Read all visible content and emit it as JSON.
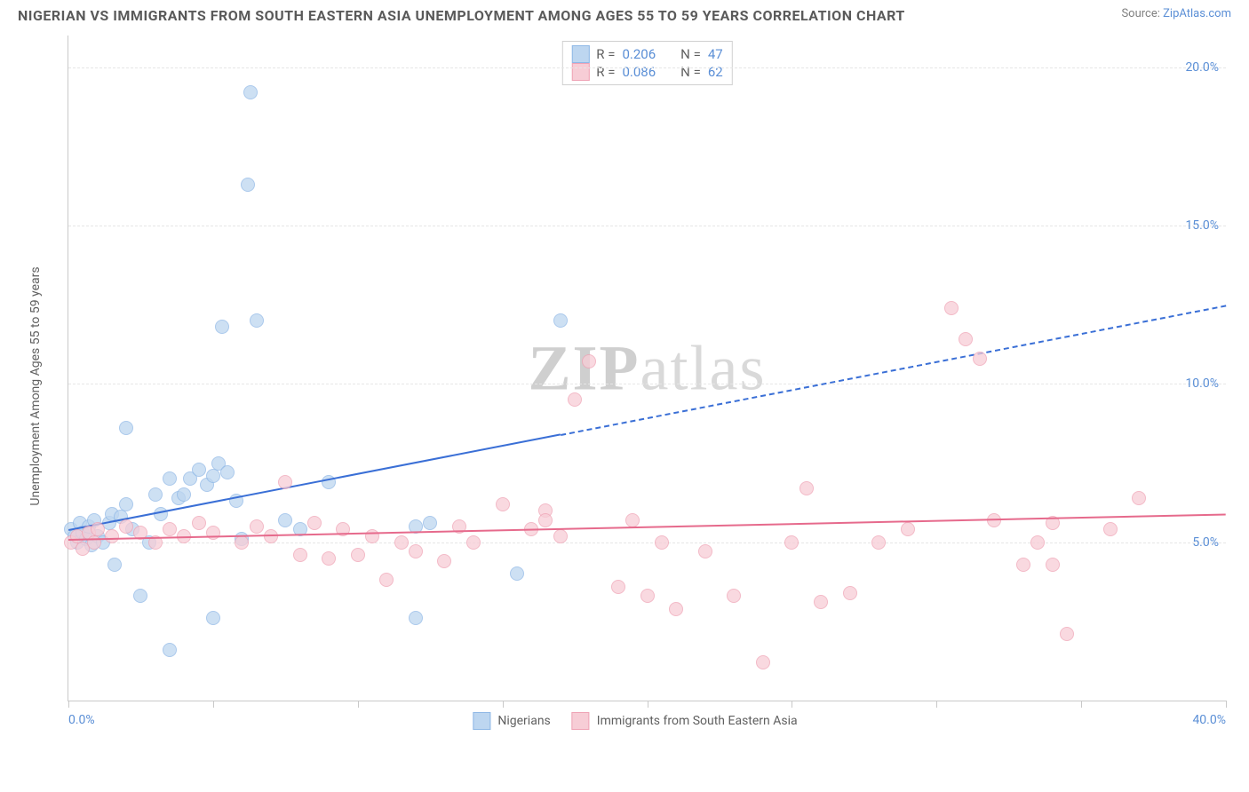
{
  "title": "NIGERIAN VS IMMIGRANTS FROM SOUTH EASTERN ASIA UNEMPLOYMENT AMONG AGES 55 TO 59 YEARS CORRELATION CHART",
  "source_label": "Source:",
  "source_name": "ZipAtlas.com",
  "ylabel": "Unemployment Among Ages 55 to 59 years",
  "watermark_a": "ZIP",
  "watermark_b": "atlas",
  "chart": {
    "type": "scatter",
    "xlim": [
      0,
      40
    ],
    "ylim": [
      0,
      21
    ],
    "xticks": [
      0,
      5,
      10,
      15,
      20,
      25,
      30,
      35,
      40
    ],
    "xtick_labels_shown": {
      "0": "0.0%",
      "40": "40.0%"
    },
    "yticks": [
      5,
      10,
      15,
      20
    ],
    "ytick_labels": [
      "5.0%",
      "10.0%",
      "15.0%",
      "20.0%"
    ],
    "grid_color": "#e6e6e6",
    "axis_color": "#c9c9c9",
    "background_color": "#ffffff",
    "label_color": "#5b8fd6",
    "series": [
      {
        "name": "Nigerians",
        "color_fill": "#bdd6f0",
        "color_stroke": "#8fb8e6",
        "r_label": "R =",
        "r_value": "0.206",
        "n_label": "N =",
        "n_value": "47",
        "marker_radius": 8,
        "marker_opacity": 0.75,
        "trend": {
          "x1": 0,
          "y1": 5.4,
          "x2": 40,
          "y2": 12.5,
          "solid_until_x": 17,
          "color": "#3a6fd6",
          "width": 2
        },
        "points": [
          [
            0.1,
            5.4
          ],
          [
            0.2,
            5.2
          ],
          [
            0.3,
            5.0
          ],
          [
            0.4,
            5.6
          ],
          [
            0.5,
            5.3
          ],
          [
            0.6,
            5.1
          ],
          [
            0.7,
            5.5
          ],
          [
            0.8,
            4.9
          ],
          [
            0.9,
            5.7
          ],
          [
            1.0,
            5.2
          ],
          [
            1.2,
            5.0
          ],
          [
            1.4,
            5.6
          ],
          [
            1.5,
            5.9
          ],
          [
            1.6,
            4.3
          ],
          [
            1.8,
            5.8
          ],
          [
            2.0,
            6.2
          ],
          [
            2.0,
            8.6
          ],
          [
            2.2,
            5.4
          ],
          [
            2.5,
            3.3
          ],
          [
            2.8,
            5.0
          ],
          [
            3.0,
            6.5
          ],
          [
            3.2,
            5.9
          ],
          [
            3.5,
            7.0
          ],
          [
            3.5,
            1.6
          ],
          [
            3.8,
            6.4
          ],
          [
            4.0,
            6.5
          ],
          [
            4.2,
            7.0
          ],
          [
            4.5,
            7.3
          ],
          [
            4.8,
            6.8
          ],
          [
            5.0,
            7.1
          ],
          [
            5.0,
            2.6
          ],
          [
            5.2,
            7.5
          ],
          [
            5.3,
            11.8
          ],
          [
            5.5,
            7.2
          ],
          [
            5.8,
            6.3
          ],
          [
            6.0,
            5.1
          ],
          [
            6.2,
            16.3
          ],
          [
            6.3,
            19.2
          ],
          [
            6.5,
            12.0
          ],
          [
            7.5,
            5.7
          ],
          [
            8.0,
            5.4
          ],
          [
            9.0,
            6.9
          ],
          [
            12.0,
            2.6
          ],
          [
            12.5,
            5.6
          ],
          [
            15.5,
            4.0
          ],
          [
            17.0,
            12.0
          ],
          [
            12.0,
            5.5
          ]
        ]
      },
      {
        "name": "Immigrants from South Eastern Asia",
        "color_fill": "#f7cdd6",
        "color_stroke": "#efa3b5",
        "r_label": "R =",
        "r_value": "0.086",
        "n_label": "N =",
        "n_value": "62",
        "marker_radius": 8,
        "marker_opacity": 0.75,
        "trend": {
          "x1": 0,
          "y1": 5.1,
          "x2": 40,
          "y2": 5.9,
          "solid_until_x": 40,
          "color": "#e66a8c",
          "width": 2
        },
        "points": [
          [
            0.1,
            5.0
          ],
          [
            0.3,
            5.2
          ],
          [
            0.5,
            4.8
          ],
          [
            0.7,
            5.3
          ],
          [
            0.9,
            5.0
          ],
          [
            1.0,
            5.4
          ],
          [
            1.5,
            5.2
          ],
          [
            2.0,
            5.5
          ],
          [
            2.5,
            5.3
          ],
          [
            3.0,
            5.0
          ],
          [
            3.5,
            5.4
          ],
          [
            4.0,
            5.2
          ],
          [
            4.5,
            5.6
          ],
          [
            5.0,
            5.3
          ],
          [
            6.0,
            5.0
          ],
          [
            6.5,
            5.5
          ],
          [
            7.0,
            5.2
          ],
          [
            7.5,
            6.9
          ],
          [
            8.0,
            4.6
          ],
          [
            8.5,
            5.6
          ],
          [
            9.0,
            4.5
          ],
          [
            9.5,
            5.4
          ],
          [
            10.0,
            4.6
          ],
          [
            10.5,
            5.2
          ],
          [
            11.0,
            3.8
          ],
          [
            11.5,
            5.0
          ],
          [
            12.0,
            4.7
          ],
          [
            13.0,
            4.4
          ],
          [
            13.5,
            5.5
          ],
          [
            14.0,
            5.0
          ],
          [
            15.0,
            6.2
          ],
          [
            16.0,
            5.4
          ],
          [
            16.5,
            6.0
          ],
          [
            16.5,
            5.7
          ],
          [
            17.0,
            5.2
          ],
          [
            17.5,
            9.5
          ],
          [
            18.0,
            10.7
          ],
          [
            19.0,
            3.6
          ],
          [
            19.5,
            5.7
          ],
          [
            20.0,
            3.3
          ],
          [
            20.5,
            5.0
          ],
          [
            21.0,
            2.9
          ],
          [
            22.0,
            4.7
          ],
          [
            23.0,
            3.3
          ],
          [
            24.0,
            1.2
          ],
          [
            25.0,
            5.0
          ],
          [
            25.5,
            6.7
          ],
          [
            26.0,
            3.1
          ],
          [
            27.0,
            3.4
          ],
          [
            28.0,
            5.0
          ],
          [
            29.0,
            5.4
          ],
          [
            30.5,
            12.4
          ],
          [
            31.0,
            11.4
          ],
          [
            31.5,
            10.8
          ],
          [
            32.0,
            5.7
          ],
          [
            33.0,
            4.3
          ],
          [
            33.5,
            5.0
          ],
          [
            34.0,
            4.3
          ],
          [
            34.5,
            2.1
          ],
          [
            36.0,
            5.4
          ],
          [
            37.0,
            6.4
          ],
          [
            34.0,
            5.6
          ]
        ]
      }
    ]
  },
  "legend_bottom": [
    {
      "swatch_fill": "#bdd6f0",
      "swatch_stroke": "#8fb8e6",
      "label": "Nigerians"
    },
    {
      "swatch_fill": "#f7cdd6",
      "swatch_stroke": "#efa3b5",
      "label": "Immigrants from South Eastern Asia"
    }
  ]
}
